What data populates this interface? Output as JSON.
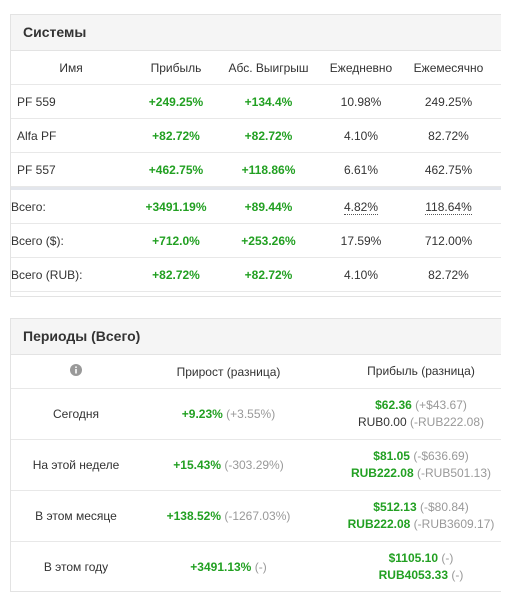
{
  "systems": {
    "title": "Системы",
    "columns": [
      "Имя",
      "Прибыль",
      "Абс. Выигрыш",
      "Ежедневно",
      "Ежемесячно"
    ],
    "rows": [
      [
        "PF 559",
        "+249.25%",
        "+134.4%",
        "10.98%",
        "249.25%"
      ],
      [
        "Alfa PF",
        "+82.72%",
        "+82.72%",
        "4.10%",
        "82.72%"
      ],
      [
        "PF 557",
        "+462.75%",
        "+118.86%",
        "6.61%",
        "462.75%"
      ]
    ],
    "totals": [
      [
        "Всего:",
        "+3491.19%",
        "+89.44%",
        "4.82%",
        "118.64%"
      ],
      [
        "Всего ($):",
        "+712.0%",
        "+253.26%",
        "17.59%",
        "712.00%"
      ],
      [
        "Всего (RUB):",
        "+82.72%",
        "+82.72%",
        "4.10%",
        "82.72%"
      ]
    ]
  },
  "periods": {
    "title": "Периоды (Всего)",
    "columns": [
      "Прирост (разница)",
      "Прибыль (разница)"
    ],
    "rows": [
      {
        "label": "Сегодня",
        "growth": "+9.23%",
        "growth_diff": "(+3.55%)",
        "usd": "$62.36",
        "usd_diff": "(+$43.67)",
        "rub": "RUB0.00",
        "rub_diff": "(-RUB222.08)"
      },
      {
        "label": "На этой неделе",
        "growth": "+15.43%",
        "growth_diff": "(-303.29%)",
        "usd": "$81.05",
        "usd_diff": "(-$636.69)",
        "rub": "RUB222.08",
        "rub_diff": "(-RUB501.13)"
      },
      {
        "label": "В этом месяце",
        "growth": "+138.52%",
        "growth_diff": "(-1267.03%)",
        "usd": "$512.13",
        "usd_diff": "(-$80.84)",
        "rub": "RUB222.08",
        "rub_diff": "(-RUB3609.17)"
      },
      {
        "label": "В этом году",
        "growth": "+3491.13%",
        "growth_diff": "(-)",
        "usd": "$1105.10",
        "usd_diff": "(-)",
        "rub": "RUB4053.33",
        "rub_diff": "(-)"
      }
    ]
  }
}
